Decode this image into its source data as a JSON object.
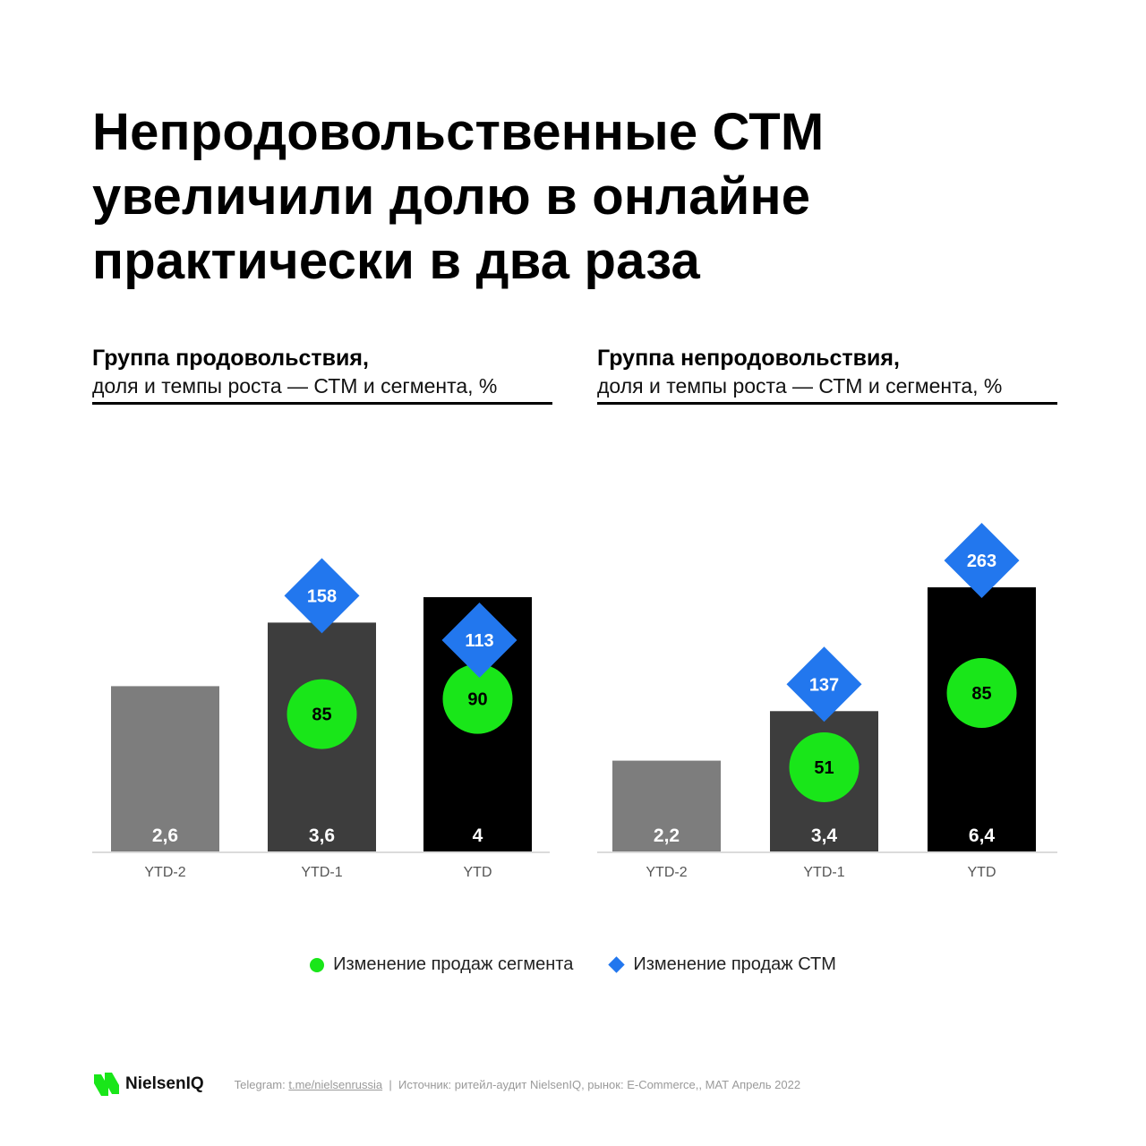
{
  "title": {
    "line1": "Непродовольственные СТМ",
    "line2": "увеличили долю в онлайне",
    "line3": "практически в два раза"
  },
  "colors": {
    "bar_ytd2": "#7d7d7d",
    "bar_ytd1": "#3d3d3d",
    "bar_ytd": "#000000",
    "segment_circle": "#19e619",
    "stm_diamond": "#2277ee"
  },
  "chart_data": [
    {
      "type": "bar",
      "title": "Группа продовольствия,",
      "subtitle": "доля и темпы роста — СТМ и сегмента, %",
      "categories": [
        "YTD-2",
        "YTD-1",
        "YTD"
      ],
      "values": [
        2.6,
        3.6,
        4
      ],
      "value_labels": [
        "2,6",
        "3,6",
        "4"
      ],
      "segment_change": [
        null,
        85,
        90
      ],
      "stm_change": [
        null,
        158,
        113
      ],
      "ylim": [
        0,
        4.3
      ]
    },
    {
      "type": "bar",
      "title": "Группа непродовольствия,",
      "subtitle": "доля и темпы роста — СТМ и сегмента, %",
      "categories": [
        "YTD-2",
        "YTD-1",
        "YTD"
      ],
      "values": [
        2.2,
        3.4,
        6.4
      ],
      "value_labels": [
        "2,2",
        "3,4",
        "6,4"
      ],
      "segment_change": [
        null,
        51,
        85
      ],
      "stm_change": [
        null,
        137,
        263
      ],
      "ylim": [
        0,
        6.8
      ]
    }
  ],
  "legend": {
    "segment": "Изменение продаж сегмента",
    "stm": "Изменение продаж СТМ"
  },
  "footer": {
    "brand": "NielsenIQ",
    "telegram_label": "Telegram:",
    "telegram_link": "t.me/nielsenrussia",
    "separator": "|",
    "source": "Источник: ритейл-аудит NielsenIQ, рынок: E-Commerce,, MAT Апрель 2022"
  }
}
